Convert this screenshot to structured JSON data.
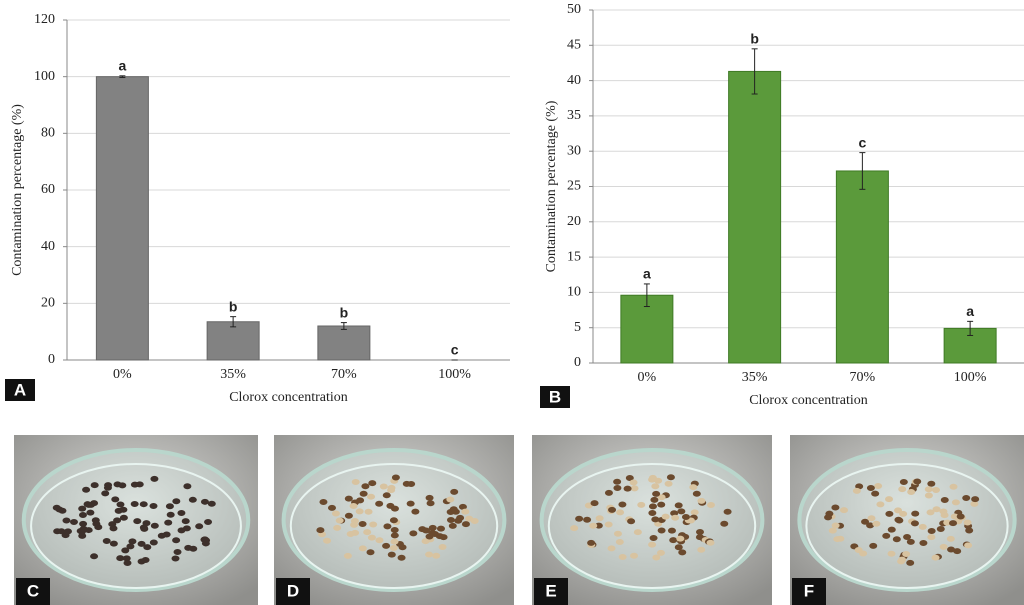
{
  "chart_data": [
    {
      "type": "bar",
      "panel_label": "A",
      "xlabel": "Clorox concentration",
      "ylabel": "Contamination percentage (%)",
      "categories": [
        "0%",
        "35%",
        "70%",
        "100%"
      ],
      "values": [
        100,
        13.5,
        12,
        0
      ],
      "errors": [
        0.3,
        1.8,
        1.2,
        0
      ],
      "annotations": [
        "a",
        "b",
        "b",
        "c"
      ],
      "color": "#828282",
      "ylim": [
        0,
        120
      ],
      "yticks": [
        0,
        20,
        40,
        60,
        80,
        100,
        120
      ],
      "grid": true
    },
    {
      "type": "bar",
      "panel_label": "B",
      "xlabel": "Clorox concentration",
      "ylabel": "Contamination percentage (%)",
      "categories": [
        "0%",
        "35%",
        "70%",
        "100%"
      ],
      "values": [
        9.6,
        41.3,
        27.2,
        4.9
      ],
      "errors": [
        1.6,
        3.2,
        2.6,
        1.0
      ],
      "annotations": [
        "a",
        "b",
        "c",
        "a"
      ],
      "color": "#5b9a3b",
      "ylim": [
        0,
        50
      ],
      "yticks": [
        0,
        5,
        10,
        15,
        20,
        25,
        30,
        35,
        40,
        45,
        50
      ],
      "grid": true
    }
  ],
  "photos": {
    "labels": [
      "C",
      "D",
      "E",
      "F"
    ]
  }
}
